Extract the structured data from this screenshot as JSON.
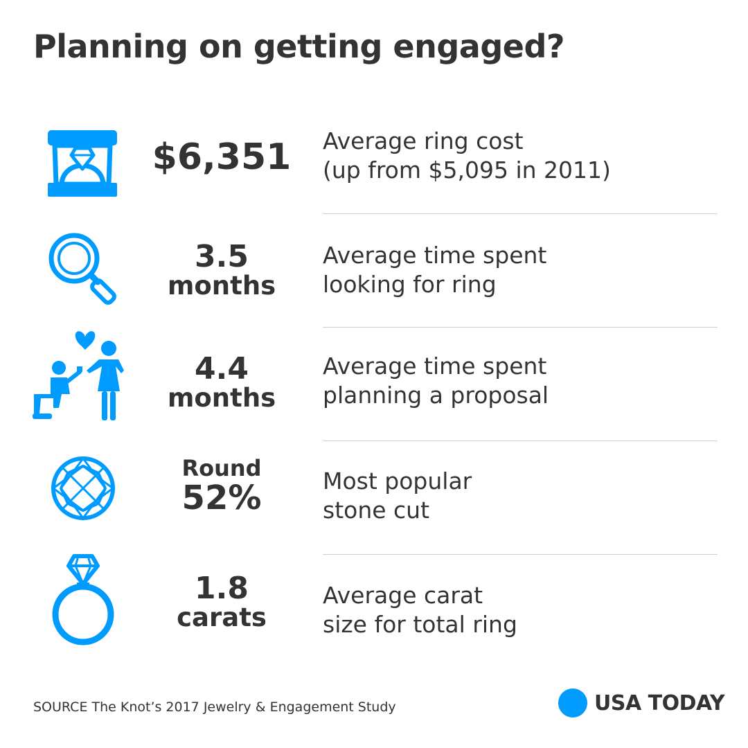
{
  "title": "Planning on getting engaged?",
  "colors": {
    "accent": "#009bff",
    "text": "#333333",
    "divider": "#cfcfcf"
  },
  "stats": [
    {
      "icon": "ring-box-icon",
      "value": [
        "$6,351"
      ],
      "description": [
        "Average ring cost",
        "(up from $5,095 in 2011)"
      ]
    },
    {
      "icon": "magnifying-glass-icon",
      "value": [
        "3.5",
        "months"
      ],
      "description": [
        "Average time spent",
        "looking for ring"
      ]
    },
    {
      "icon": "proposal-icon",
      "value": [
        "4.4",
        "months"
      ],
      "description": [
        "Average time spent",
        "planning a proposal"
      ]
    },
    {
      "icon": "round-diamond-icon",
      "value": [
        "Round",
        "52%"
      ],
      "description": [
        "Most popular",
        "stone cut"
      ]
    },
    {
      "icon": "diamond-ring-icon",
      "value": [
        "1.8",
        "carats"
      ],
      "description": [
        "Average carat",
        "size for total ring"
      ]
    }
  ],
  "source": "SOURCE The Knot’s 2017 Jewelry & Engagement Study",
  "brand": "USA TODAY"
}
